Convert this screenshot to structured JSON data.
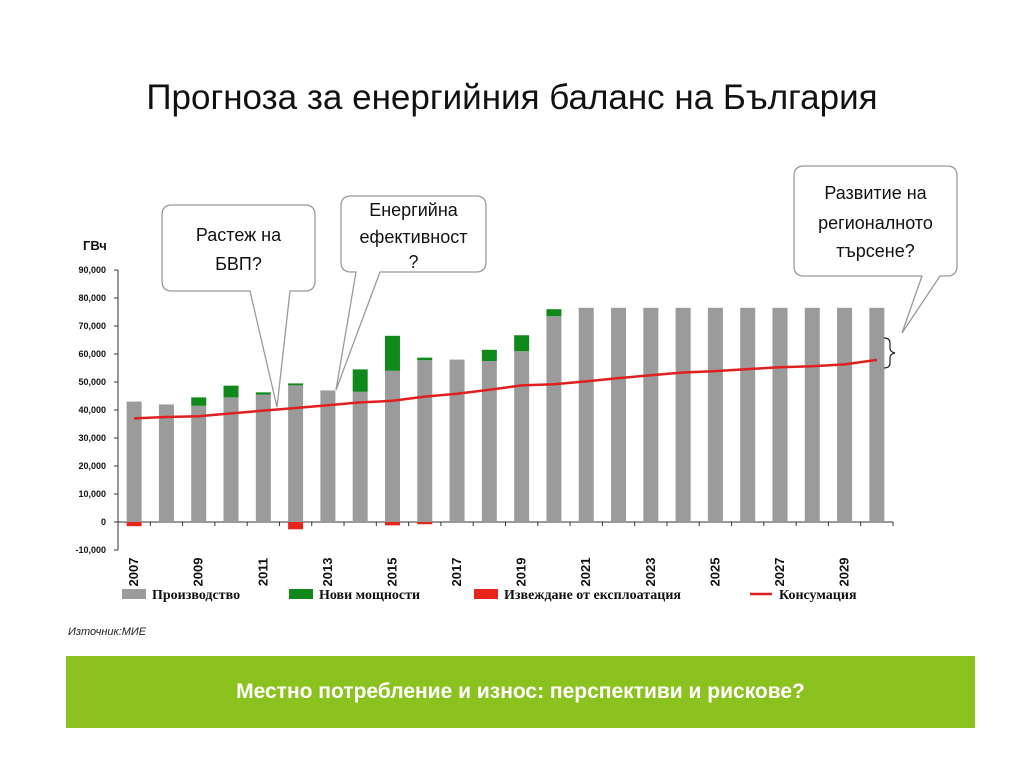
{
  "slide": {
    "title": "Прогноза за енергийния баланс на България",
    "source": "Източник:МИЕ",
    "banner": "Местно потребление и износ: перспективи и рискове?",
    "banner_color": "#8cc21f"
  },
  "callouts": [
    {
      "lines": [
        "Растеж на",
        "БВП?"
      ]
    },
    {
      "lines": [
        "Енергийна",
        "ефективност",
        "?"
      ]
    },
    {
      "lines": [
        "Развитие на",
        "регионалното",
        "търсене?"
      ]
    }
  ],
  "chart_data": {
    "type": "bar",
    "unit_label": "ГВч",
    "x": [
      2007,
      2008,
      2009,
      2010,
      2011,
      2012,
      2013,
      2014,
      2015,
      2016,
      2017,
      2018,
      2019,
      2020,
      2021,
      2022,
      2023,
      2024,
      2025,
      2026,
      2027,
      2028,
      2029,
      2030
    ],
    "xtick_labels": [
      "2007",
      "2009",
      "2011",
      "2013",
      "2015",
      "2017",
      "2019",
      "2021",
      "2023",
      "2025",
      "2027",
      "2029"
    ],
    "ytick_labels": [
      "-10,000",
      "0",
      "10,000",
      "20,000",
      "30,000",
      "40,000",
      "50,000",
      "60,000",
      "70,000",
      "80,000",
      "90,000"
    ],
    "ylim": [
      -10000,
      90000
    ],
    "grid": false,
    "legend_position": "bottom",
    "series": [
      {
        "name": "Производство",
        "type": "bar",
        "color": "#9b9b9b",
        "values": [
          43000,
          42000,
          41500,
          44500,
          45500,
          48800,
          47000,
          46500,
          54000,
          57800,
          58000,
          57500,
          61000,
          73500,
          76500,
          76500,
          76500,
          76500,
          76500,
          76500,
          76500,
          76500,
          76500,
          76500
        ]
      },
      {
        "name": "Нови мощности",
        "type": "bar",
        "color": "#0f8a1a",
        "values": [
          0,
          0,
          3000,
          4200,
          800,
          700,
          0,
          8000,
          12500,
          900,
          0,
          4000,
          5700,
          2500,
          0,
          0,
          0,
          0,
          0,
          0,
          0,
          0,
          0,
          0
        ]
      },
      {
        "name": "Извеждане от експлоатация",
        "type": "bar",
        "color": "#e8251b",
        "values": [
          -1500,
          0,
          0,
          0,
          0,
          -2600,
          0,
          0,
          -1200,
          -800,
          0,
          0,
          0,
          0,
          0,
          0,
          0,
          0,
          0,
          0,
          0,
          0,
          0,
          0
        ]
      },
      {
        "name": "Консумация",
        "type": "line",
        "color": "#e02020",
        "values": [
          37000,
          37500,
          37800,
          38800,
          39800,
          40700,
          41700,
          42700,
          43300,
          44800,
          45800,
          47200,
          48800,
          49200,
          50200,
          51400,
          52400,
          53400,
          53900,
          54600,
          55300,
          55600,
          56300,
          57900
        ]
      }
    ]
  }
}
